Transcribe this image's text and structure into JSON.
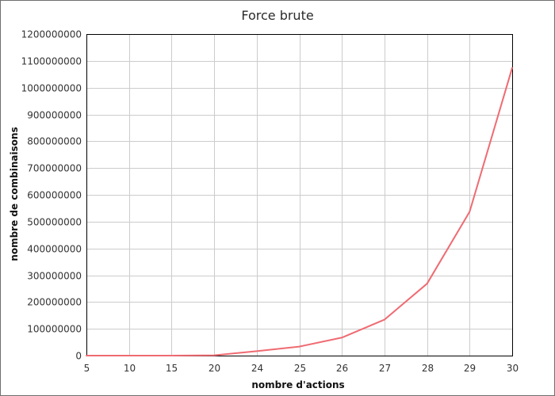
{
  "chart_data": {
    "type": "line",
    "title": "Force brute",
    "xlabel": "nombre d'actions",
    "ylabel": "nombre de combinaisons",
    "categories": [
      "5",
      "10",
      "15",
      "20",
      "24",
      "25",
      "26",
      "27",
      "28",
      "29",
      "30"
    ],
    "series": [
      {
        "name": "nombre de combinaisons",
        "values": [
          32,
          1024,
          32768,
          1048576,
          16777216,
          33554432,
          67108864,
          134217728,
          268435456,
          536870912,
          1073741824
        ],
        "color": "#ef6b72"
      }
    ],
    "ylim": [
      0,
      1200000000
    ],
    "yticks": [
      "0",
      "100000000",
      "200000000",
      "300000000",
      "400000000",
      "500000000",
      "600000000",
      "700000000",
      "800000000",
      "900000000",
      "1000000000",
      "1100000000",
      "1200000000"
    ],
    "grid": true,
    "legend": "none"
  }
}
